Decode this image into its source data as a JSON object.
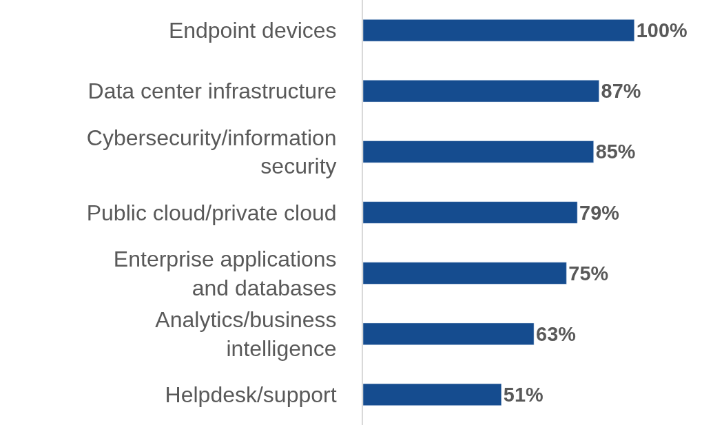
{
  "chart_data": {
    "type": "bar",
    "orientation": "horizontal",
    "categories": [
      "Endpoint devices",
      "Data center infrastructure",
      "Cybersecurity/information\nsecurity",
      "Public cloud/private cloud",
      "Enterprise applications\nand databases",
      "Analytics/business\nintelligence",
      "Helpdesk/support"
    ],
    "values": [
      100,
      87,
      85,
      79,
      75,
      63,
      51
    ],
    "value_labels": [
      "100%",
      "87%",
      "85%",
      "79%",
      "75%",
      "63%",
      "51%"
    ],
    "color": "#154c8f",
    "legend": false
  }
}
